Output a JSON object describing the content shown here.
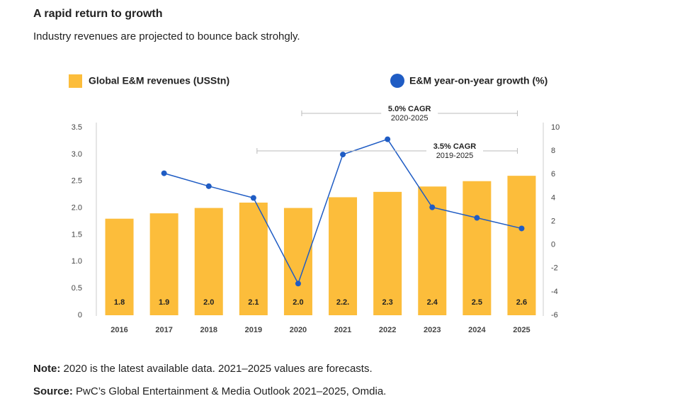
{
  "chart_data": {
    "type": "bar-line",
    "title": "A rapid return to growth",
    "subtitle": "Industry revenues are projected to bounce back strohgly.",
    "categories": [
      "2016",
      "2017",
      "2018",
      "2019",
      "2020",
      "2021",
      "2022",
      "2023",
      "2024",
      "2025"
    ],
    "series": [
      {
        "name": "Global E&M revenues (USStn)",
        "color": "#fcbd3b",
        "values": [
          1.8,
          1.9,
          2.0,
          2.1,
          2.0,
          2.2,
          2.3,
          2.4,
          2.5,
          2.6
        ],
        "value_labels": [
          "1.8",
          "1.9",
          "2.0",
          "2.1",
          "2.0",
          "2.2.",
          "2.3",
          "2.4",
          "2.5",
          "2.6"
        ]
      },
      {
        "name": "E&M year-on-year growth (%)",
        "color": "#1f5cc4",
        "axis": "y2",
        "values": [
          null,
          6.1,
          5.0,
          4.0,
          -3.3,
          7.7,
          9.0,
          3.2,
          2.3,
          1.4
        ]
      }
    ],
    "ylim": [
      0,
      3.5
    ],
    "yticks": [
      0,
      0.5,
      {
        "value": 1,
        "label": "1.0"
      },
      1.5,
      {
        "value": 2,
        "label": "2.0"
      },
      2.5,
      {
        "value": 3,
        "label": "3.0"
      },
      3.5
    ],
    "y2lim": [
      -6,
      10
    ],
    "y2ticks": [
      -6,
      -4,
      -2,
      0,
      2,
      4,
      6,
      8,
      10
    ],
    "annotations": [
      {
        "title": "5.0% CAGR",
        "subtitle": "2020-2025"
      },
      {
        "title": "3.5% CAGR",
        "subtitle": "2019-2025"
      }
    ],
    "notes": [
      {
        "label": "Note:",
        "text": " 2020 is the latest available data. 2021–2025 values are forecasts."
      },
      {
        "label": "Source:",
        "text": " PwC’s Global Entertainment & Media Outlook 2021–2025, Omdia."
      }
    ]
  }
}
